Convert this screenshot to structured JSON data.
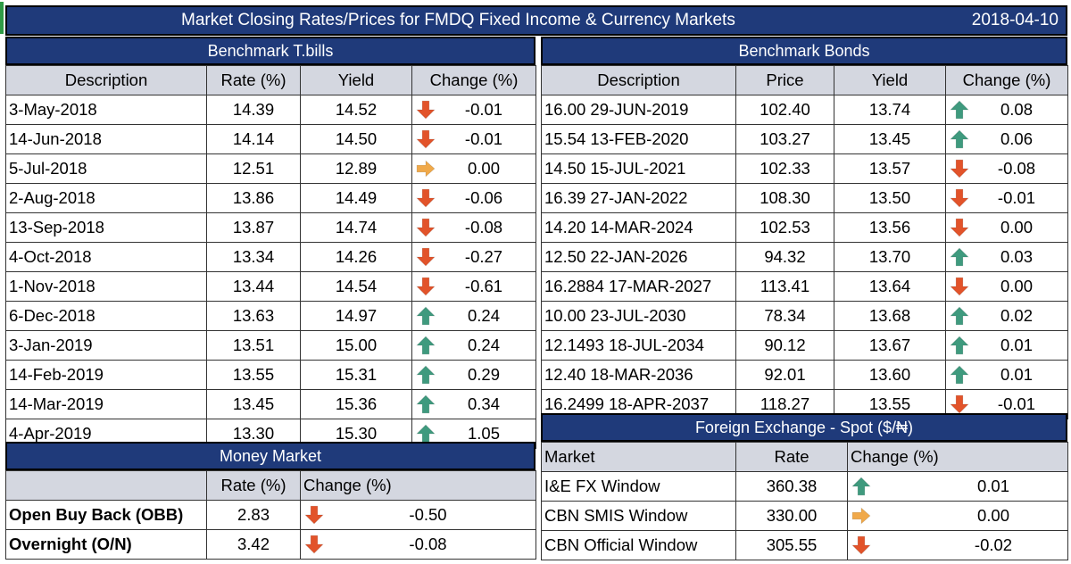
{
  "title": "Market Closing Rates/Prices for FMDQ Fixed Income & Currency Markets",
  "date": "2018-04-10",
  "colors": {
    "header_bg": "#1f3a7a",
    "col_header_bg": "#d4d7e0",
    "arrow_up": "#3f9a7e",
    "arrow_down": "#e2532a",
    "arrow_flat": "#f0a94a"
  },
  "tbills": {
    "title": "Benchmark T.bills",
    "headers": [
      "Description",
      "Rate (%)",
      "Yield",
      "Change (%)"
    ],
    "rows": [
      {
        "desc": "3-May-2018",
        "rate": "14.39",
        "yield": "14.52",
        "dir": "down",
        "change": "-0.01"
      },
      {
        "desc": "14-Jun-2018",
        "rate": "14.14",
        "yield": "14.50",
        "dir": "down",
        "change": "-0.01"
      },
      {
        "desc": "5-Jul-2018",
        "rate": "12.51",
        "yield": "12.89",
        "dir": "flat",
        "change": "0.00"
      },
      {
        "desc": "2-Aug-2018",
        "rate": "13.86",
        "yield": "14.49",
        "dir": "down",
        "change": "-0.06"
      },
      {
        "desc": "13-Sep-2018",
        "rate": "13.87",
        "yield": "14.74",
        "dir": "down",
        "change": "-0.08"
      },
      {
        "desc": "4-Oct-2018",
        "rate": "13.34",
        "yield": "14.26",
        "dir": "down",
        "change": "-0.27"
      },
      {
        "desc": "1-Nov-2018",
        "rate": "13.44",
        "yield": "14.54",
        "dir": "down",
        "change": "-0.61"
      },
      {
        "desc": "6-Dec-2018",
        "rate": "13.63",
        "yield": "14.97",
        "dir": "up",
        "change": "0.24"
      },
      {
        "desc": "3-Jan-2019",
        "rate": "13.51",
        "yield": "15.00",
        "dir": "up",
        "change": "0.24"
      },
      {
        "desc": "14-Feb-2019",
        "rate": "13.55",
        "yield": "15.31",
        "dir": "up",
        "change": "0.29"
      },
      {
        "desc": "14-Mar-2019",
        "rate": "13.45",
        "yield": "15.36",
        "dir": "up",
        "change": "0.34"
      },
      {
        "desc": "4-Apr-2019",
        "rate": "13.30",
        "yield": "15.30",
        "dir": "up",
        "change": "1.05"
      }
    ]
  },
  "bonds": {
    "title": "Benchmark Bonds",
    "headers": [
      "Description",
      "Price",
      "Yield",
      "Change (%)"
    ],
    "rows": [
      {
        "desc": "16.00 29-JUN-2019",
        "price": "102.40",
        "yield": "13.74",
        "dir": "up",
        "change": "0.08"
      },
      {
        "desc": "15.54 13-FEB-2020",
        "price": "103.27",
        "yield": "13.45",
        "dir": "up",
        "change": "0.06"
      },
      {
        "desc": "14.50 15-JUL-2021",
        "price": "102.33",
        "yield": "13.57",
        "dir": "down",
        "change": "-0.08"
      },
      {
        "desc": "16.39 27-JAN-2022",
        "price": "108.30",
        "yield": "13.50",
        "dir": "down",
        "change": "-0.01"
      },
      {
        "desc": "14.20 14-MAR-2024",
        "price": "102.53",
        "yield": "13.56",
        "dir": "down",
        "change": "0.00"
      },
      {
        "desc": "12.50 22-JAN-2026",
        "price": "94.32",
        "yield": "13.70",
        "dir": "up",
        "change": "0.03"
      },
      {
        "desc": "16.2884 17-MAR-2027",
        "price": "113.41",
        "yield": "13.64",
        "dir": "down",
        "change": "0.00"
      },
      {
        "desc": "10.00 23-JUL-2030",
        "price": "78.34",
        "yield": "13.68",
        "dir": "up",
        "change": "0.02"
      },
      {
        "desc": "12.1493 18-JUL-2034",
        "price": "90.12",
        "yield": "13.67",
        "dir": "up",
        "change": "0.01"
      },
      {
        "desc": "12.40 18-MAR-2036",
        "price": "92.01",
        "yield": "13.60",
        "dir": "up",
        "change": "0.01"
      },
      {
        "desc": "16.2499 18-APR-2037",
        "price": "118.27",
        "yield": "13.55",
        "dir": "down",
        "change": "-0.01"
      }
    ]
  },
  "money_market": {
    "title": "Money Market",
    "headers": [
      "",
      "Rate (%)",
      "Change (%)"
    ],
    "rows": [
      {
        "desc": "Open Buy Back (OBB)",
        "rate": "2.83",
        "dir": "down",
        "change": "-0.50"
      },
      {
        "desc": "Overnight (O/N)",
        "rate": "3.42",
        "dir": "down",
        "change": "-0.08"
      }
    ]
  },
  "fx": {
    "title": "Foreign Exchange - Spot ($/₦)",
    "headers": [
      "Market",
      "Rate",
      "Change (%)"
    ],
    "rows": [
      {
        "desc": "I&E FX Window",
        "rate": "360.38",
        "dir": "up",
        "change": "0.01"
      },
      {
        "desc": "CBN SMIS Window",
        "rate": "330.00",
        "dir": "flat",
        "change": "0.00"
      },
      {
        "desc": "CBN Official Window",
        "rate": "305.55",
        "dir": "down",
        "change": "-0.02"
      }
    ]
  }
}
